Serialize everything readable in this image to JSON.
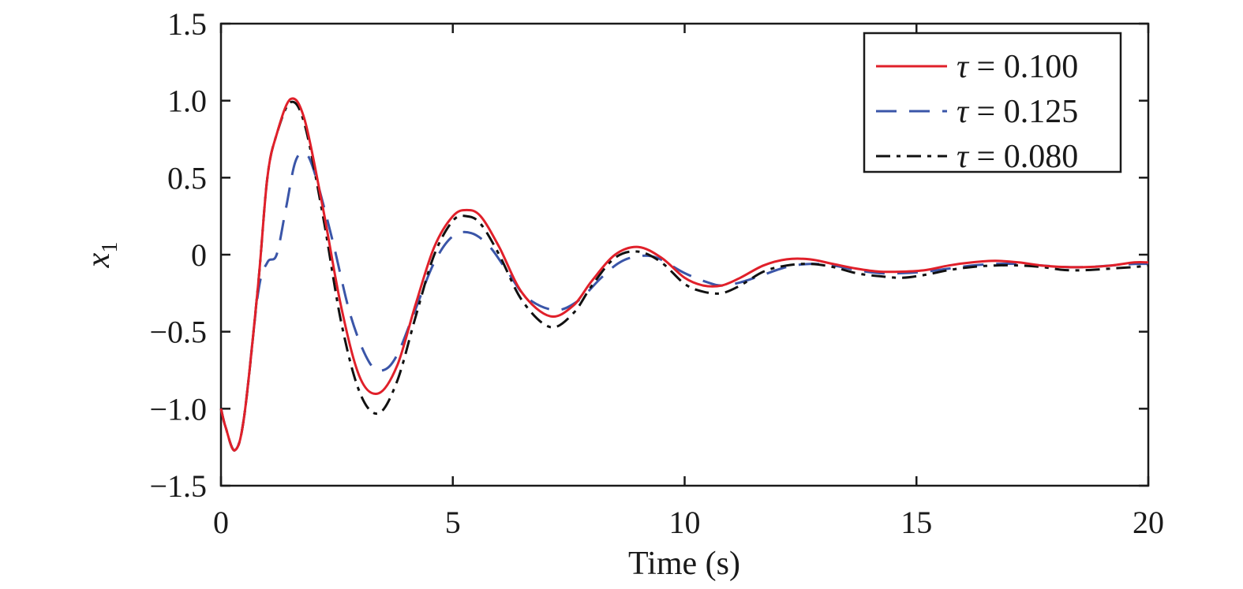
{
  "chart_data": {
    "type": "line",
    "xlabel": "Time (s)",
    "ylabel": "x",
    "ylabel_subscript": "1",
    "xlim": [
      0,
      20
    ],
    "ylim": [
      -1.5,
      1.5
    ],
    "x_ticks": [
      0,
      5,
      10,
      15,
      20
    ],
    "x_tick_labels": [
      "0",
      "5",
      "10",
      "15",
      "20"
    ],
    "y_ticks": [
      1.5,
      1.0,
      0.5,
      0,
      -0.5,
      -1.0,
      -1.5
    ],
    "y_tick_labels": [
      "1.5",
      "1.0",
      "0.5",
      "0",
      "−0.5",
      "−1.0",
      "−1.5"
    ],
    "grid": false,
    "legend_position": "top-right",
    "series": [
      {
        "name": "τ = 0.100",
        "legend_symbol": "τ",
        "legend_rest": " = 0.100",
        "color": "#e0202a",
        "style": "solid",
        "x": [
          0,
          0.1,
          0.3,
          0.5,
          0.8,
          1.0,
          1.2,
          1.5,
          1.8,
          2.2,
          2.6,
          3.0,
          3.4,
          3.8,
          4.2,
          4.6,
          5.0,
          5.3,
          5.6,
          6.0,
          6.5,
          7.1,
          7.6,
          8.0,
          8.5,
          9.0,
          9.5,
          10.0,
          10.4,
          10.8,
          11.2,
          11.7,
          12.2,
          12.7,
          13.2,
          13.7,
          14.2,
          14.7,
          15.2,
          15.7,
          16.2,
          16.7,
          17.2,
          17.7,
          18.2,
          18.7,
          19.2,
          19.7,
          20.0
        ],
        "y": [
          -1.0,
          -1.12,
          -1.27,
          -1.05,
          -0.2,
          0.5,
          0.78,
          1.01,
          0.88,
          0.3,
          -0.35,
          -0.8,
          -0.9,
          -0.72,
          -0.32,
          0.05,
          0.25,
          0.29,
          0.25,
          0.05,
          -0.25,
          -0.4,
          -0.33,
          -0.17,
          0.0,
          0.05,
          -0.02,
          -0.15,
          -0.2,
          -0.2,
          -0.15,
          -0.07,
          -0.03,
          -0.03,
          -0.06,
          -0.09,
          -0.11,
          -0.11,
          -0.1,
          -0.07,
          -0.05,
          -0.04,
          -0.05,
          -0.07,
          -0.08,
          -0.08,
          -0.07,
          -0.05,
          -0.05
        ]
      },
      {
        "name": "τ = 0.125",
        "legend_symbol": "τ",
        "legend_rest": " = 0.125",
        "color": "#3a55a8",
        "style": "dashed",
        "x": [
          0,
          0.1,
          0.3,
          0.5,
          0.8,
          1.0,
          1.2,
          1.4,
          1.6,
          1.8,
          2.0,
          2.4,
          2.8,
          3.2,
          3.5,
          3.8,
          4.2,
          4.6,
          5.0,
          5.4,
          5.8,
          6.2,
          6.6,
          7.2,
          7.7,
          8.2,
          8.6,
          9.0,
          9.4,
          10.0,
          10.5,
          10.8,
          11.2,
          11.7,
          12.2,
          12.7,
          13.2,
          13.7,
          14.2,
          14.7,
          15.2,
          15.7,
          16.2,
          16.7,
          17.2,
          17.7,
          18.2,
          18.7,
          19.2,
          19.7,
          20.0
        ],
        "y": [
          -1.0,
          -1.12,
          -1.27,
          -1.05,
          -0.25,
          -0.05,
          0.0,
          0.3,
          0.6,
          0.66,
          0.55,
          0.1,
          -0.4,
          -0.7,
          -0.75,
          -0.65,
          -0.35,
          -0.05,
          0.12,
          0.14,
          0.05,
          -0.12,
          -0.28,
          -0.36,
          -0.3,
          -0.15,
          -0.05,
          -0.01,
          -0.02,
          -0.12,
          -0.18,
          -0.2,
          -0.18,
          -0.13,
          -0.08,
          -0.06,
          -0.07,
          -0.1,
          -0.12,
          -0.12,
          -0.11,
          -0.09,
          -0.07,
          -0.06,
          -0.06,
          -0.07,
          -0.08,
          -0.08,
          -0.07,
          -0.06,
          -0.06
        ]
      },
      {
        "name": "τ = 0.080",
        "legend_symbol": "τ",
        "legend_rest": " = 0.080",
        "color": "#111111",
        "style": "dashdot",
        "x": [
          0,
          0.1,
          0.3,
          0.5,
          0.8,
          1.0,
          1.2,
          1.5,
          1.8,
          2.2,
          2.6,
          3.0,
          3.4,
          3.8,
          4.2,
          4.6,
          5.0,
          5.3,
          5.6,
          6.0,
          6.5,
          7.1,
          7.6,
          8.0,
          8.5,
          9.0,
          9.5,
          10.0,
          10.4,
          10.8,
          11.2,
          11.7,
          12.2,
          12.7,
          13.2,
          13.7,
          14.2,
          14.7,
          15.2,
          15.7,
          16.2,
          16.7,
          17.2,
          17.7,
          18.2,
          18.7,
          19.2,
          19.7,
          20.0
        ],
        "y": [
          -1.0,
          -1.12,
          -1.27,
          -1.05,
          -0.2,
          0.5,
          0.78,
          0.99,
          0.85,
          0.25,
          -0.45,
          -0.9,
          -1.03,
          -0.82,
          -0.4,
          0.0,
          0.22,
          0.25,
          0.2,
          0.0,
          -0.3,
          -0.47,
          -0.38,
          -0.2,
          -0.02,
          0.02,
          -0.05,
          -0.19,
          -0.24,
          -0.25,
          -0.2,
          -0.11,
          -0.07,
          -0.06,
          -0.08,
          -0.12,
          -0.14,
          -0.15,
          -0.13,
          -0.1,
          -0.08,
          -0.07,
          -0.07,
          -0.08,
          -0.1,
          -0.1,
          -0.09,
          -0.08,
          -0.07
        ]
      }
    ]
  }
}
